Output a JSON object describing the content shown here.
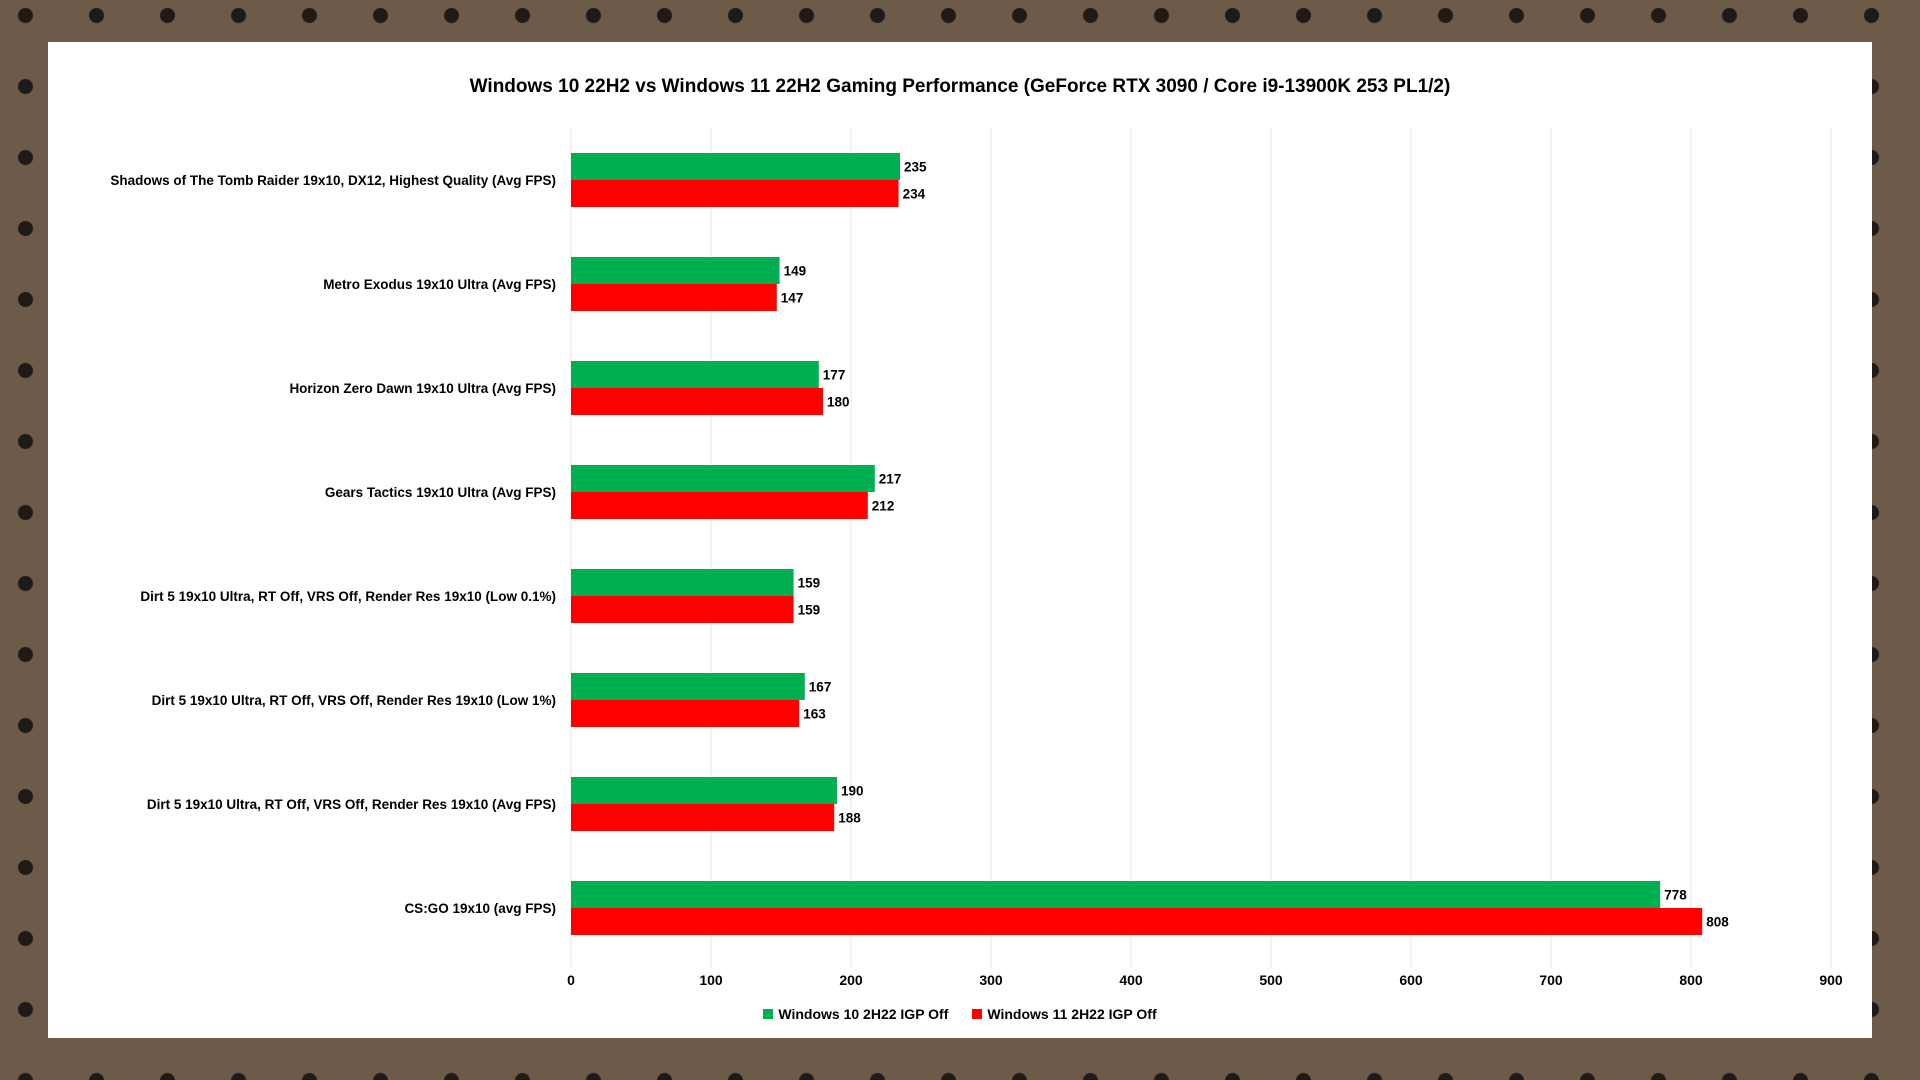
{
  "chart_data": {
    "type": "bar",
    "orientation": "horizontal",
    "title": "Windows 10 22H2 vs Windows 11 22H2 Gaming Performance (GeForce RTX 3090 / Core i9-13900K 253 PL1/2)",
    "categories": [
      "Shadows of The Tomb Raider 19x10, DX12, Highest Quality (Avg FPS)",
      "Metro Exodus 19x10 Ultra (Avg FPS)",
      "Horizon Zero Dawn 19x10 Ultra (Avg FPS)",
      "Gears Tactics 19x10 Ultra (Avg FPS)",
      "Dirt 5 19x10 Ultra, RT Off, VRS Off, Render Res 19x10 (Low 0.1%)",
      "Dirt 5 19x10 Ultra, RT Off, VRS Off, Render Res 19x10 (Low 1%)",
      "Dirt 5 19x10 Ultra, RT Off, VRS Off, Render Res 19x10 (Avg FPS)",
      "CS:GO 19x10 (avg FPS)"
    ],
    "series": [
      {
        "name": "Windows 10 2H22 IGP Off",
        "color": "#00b050",
        "values": [
          235,
          149,
          177,
          217,
          159,
          167,
          190,
          778
        ]
      },
      {
        "name": "Windows 11 2H22 IGP Off",
        "color": "#ff0000",
        "values": [
          234,
          147,
          180,
          212,
          159,
          163,
          188,
          808
        ]
      }
    ],
    "xlim": [
      0,
      900
    ],
    "xticks": [
      0,
      100,
      200,
      300,
      400,
      500,
      600,
      700,
      800,
      900
    ],
    "grid": true,
    "data_labels": true,
    "legend": "bottom"
  }
}
